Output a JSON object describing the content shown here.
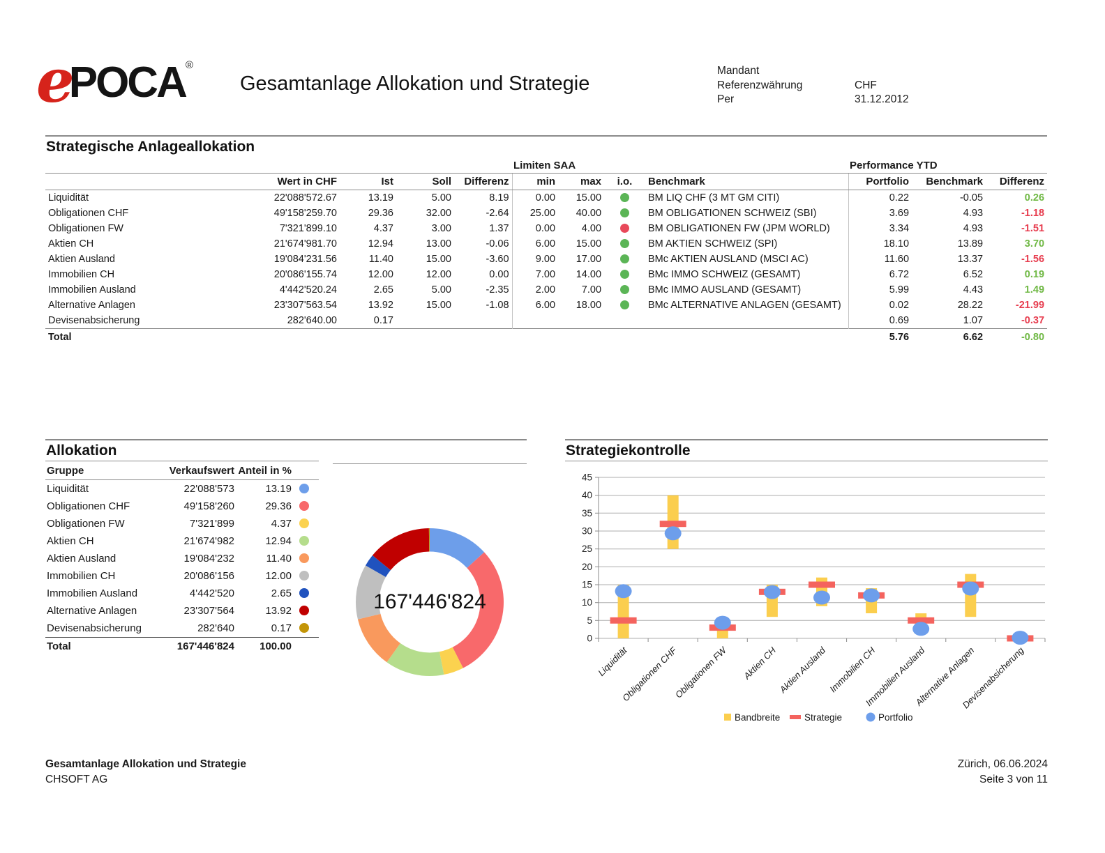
{
  "header": {
    "logo_e": "e",
    "logo_poca": "POCA",
    "logo_reg": "®",
    "title": "Gesamtanlage Allokation und Strategie",
    "meta": [
      {
        "label": "Mandant",
        "value": ""
      },
      {
        "label": "Referenzwährung",
        "value": "CHF"
      },
      {
        "label": "Per",
        "value": "31.12.2012"
      }
    ]
  },
  "colors": {
    "io_green": "#5bb556",
    "io_red": "#e8495a",
    "diff_green": "#6fb844",
    "diff_red": "#e73c4e",
    "logo_red": "#d6231b"
  },
  "saa": {
    "title": "Strategische Anlageallokation",
    "limits_group": "Limiten SAA",
    "perf_group": "Performance YTD",
    "col_wert": "Wert in CHF",
    "col_ist": "Ist",
    "col_soll": "Soll",
    "col_diff": "Differenz",
    "col_min": "min",
    "col_max": "max",
    "col_io": "i.o.",
    "col_benchmark": "Benchmark",
    "col_portfolio": "Portfolio",
    "col_benchmark2": "Benchmark",
    "col_diff2": "Differenz",
    "total_label": "Total",
    "rows": [
      {
        "name": "Liquidität",
        "wert": "22'088'572.67",
        "ist": "13.19",
        "soll": "5.00",
        "diff": "8.19",
        "min": "0.00",
        "max": "15.00",
        "io": "green",
        "benchmark": "BM LIQ CHF (3 MT GM CITI)",
        "ytd_portfolio": "0.22",
        "ytd_benchmark": "-0.05",
        "ytd_diff": "0.26",
        "ytd_diff_color": "green"
      },
      {
        "name": "Obligationen CHF",
        "wert": "49'158'259.70",
        "ist": "29.36",
        "soll": "32.00",
        "diff": "-2.64",
        "min": "25.00",
        "max": "40.00",
        "io": "green",
        "benchmark": "BM OBLIGATIONEN SCHWEIZ (SBI)",
        "ytd_portfolio": "3.69",
        "ytd_benchmark": "4.93",
        "ytd_diff": "-1.18",
        "ytd_diff_color": "red"
      },
      {
        "name": "Obligationen FW",
        "wert": "7'321'899.10",
        "ist": "4.37",
        "soll": "3.00",
        "diff": "1.37",
        "min": "0.00",
        "max": "4.00",
        "io": "red",
        "benchmark": "BM OBLIGATIONEN FW (JPM WORLD)",
        "ytd_portfolio": "3.34",
        "ytd_benchmark": "4.93",
        "ytd_diff": "-1.51",
        "ytd_diff_color": "red"
      },
      {
        "name": "Aktien CH",
        "wert": "21'674'981.70",
        "ist": "12.94",
        "soll": "13.00",
        "diff": "-0.06",
        "min": "6.00",
        "max": "15.00",
        "io": "green",
        "benchmark": "BM AKTIEN SCHWEIZ (SPI)",
        "ytd_portfolio": "18.10",
        "ytd_benchmark": "13.89",
        "ytd_diff": "3.70",
        "ytd_diff_color": "green"
      },
      {
        "name": "Aktien Ausland",
        "wert": "19'084'231.56",
        "ist": "11.40",
        "soll": "15.00",
        "diff": "-3.60",
        "min": "9.00",
        "max": "17.00",
        "io": "green",
        "benchmark": "BMc AKTIEN AUSLAND (MSCI AC)",
        "ytd_portfolio": "11.60",
        "ytd_benchmark": "13.37",
        "ytd_diff": "-1.56",
        "ytd_diff_color": "red"
      },
      {
        "name": "Immobilien CH",
        "wert": "20'086'155.74",
        "ist": "12.00",
        "soll": "12.00",
        "diff": "0.00",
        "min": "7.00",
        "max": "14.00",
        "io": "green",
        "benchmark": "BMc IMMO SCHWEIZ (GESAMT)",
        "ytd_portfolio": "6.72",
        "ytd_benchmark": "6.52",
        "ytd_diff": "0.19",
        "ytd_diff_color": "green"
      },
      {
        "name": "Immobilien Ausland",
        "wert": "4'442'520.24",
        "ist": "2.65",
        "soll": "5.00",
        "diff": "-2.35",
        "min": "2.00",
        "max": "7.00",
        "io": "green",
        "benchmark": "BMc IMMO AUSLAND (GESAMT)",
        "ytd_portfolio": "5.99",
        "ytd_benchmark": "4.43",
        "ytd_diff": "1.49",
        "ytd_diff_color": "green"
      },
      {
        "name": "Alternative Anlagen",
        "wert": "23'307'563.54",
        "ist": "13.92",
        "soll": "15.00",
        "diff": "-1.08",
        "min": "6.00",
        "max": "18.00",
        "io": "green",
        "benchmark": "BMc ALTERNATIVE ANLAGEN (GESAMT)",
        "ytd_portfolio": "0.02",
        "ytd_benchmark": "28.22",
        "ytd_diff": "-21.99",
        "ytd_diff_color": "red"
      },
      {
        "name": "Devisenabsicherung",
        "wert": "282'640.00",
        "ist": "0.17",
        "soll": "",
        "diff": "",
        "min": "",
        "max": "",
        "io": null,
        "benchmark": "",
        "ytd_portfolio": "0.69",
        "ytd_benchmark": "1.07",
        "ytd_diff": "-0.37",
        "ytd_diff_color": "red"
      }
    ],
    "total": {
      "portfolio": "5.76",
      "benchmark": "6.62",
      "diff": "-0.80",
      "diff_color": "green"
    }
  },
  "allocation": {
    "title": "Allokation",
    "col_group": "Gruppe",
    "col_value": "Verkaufswert",
    "col_share": "Anteil in %",
    "rows": [
      {
        "group": "Liquidität",
        "value": "22'088'573",
        "share": "13.19",
        "share_num": 13.19,
        "color": "#6d9eea"
      },
      {
        "group": "Obligationen CHF",
        "value": "49'158'260",
        "share": "29.36",
        "share_num": 29.36,
        "color": "#f8696b"
      },
      {
        "group": "Obligationen FW",
        "value": "7'321'899",
        "share": "4.37",
        "share_num": 4.37,
        "color": "#fbd24f"
      },
      {
        "group": "Aktien CH",
        "value": "21'674'982",
        "share": "12.94",
        "share_num": 12.94,
        "color": "#b5dd8c"
      },
      {
        "group": "Aktien Ausland",
        "value": "19'084'232",
        "share": "11.40",
        "share_num": 11.4,
        "color": "#f9995d"
      },
      {
        "group": "Immobilien CH",
        "value": "20'086'156",
        "share": "12.00",
        "share_num": 12.0,
        "color": "#bfbfbf"
      },
      {
        "group": "Immobilien Ausland",
        "value": "4'442'520",
        "share": "2.65",
        "share_num": 2.65,
        "color": "#2052be"
      },
      {
        "group": "Alternative Anlagen",
        "value": "23'307'564",
        "share": "13.92",
        "share_num": 13.92,
        "color": "#c00000"
      },
      {
        "group": "Devisenabsicherung",
        "value": "282'640",
        "share": "0.17",
        "share_num": 0.17,
        "color": "#c39508"
      }
    ],
    "total": {
      "label": "Total",
      "value": "167'446'824",
      "share": "100.00"
    }
  },
  "donut": {
    "center_label": "167'446'824"
  },
  "control": {
    "title": "Strategiekontrolle",
    "y_min": 0,
    "y_max": 45,
    "y_step": 5,
    "legend": {
      "band": "Bandbreite",
      "strategy": "Strategie",
      "portfolio": "Portfolio"
    },
    "chart_colors": {
      "band": "#fbce4e",
      "strategy": "#f4635e",
      "portfolio": "#6d9eeb"
    },
    "points": [
      {
        "label": "Liquidität",
        "min": 0,
        "max": 15,
        "strategy": 5,
        "portfolio": 13.19
      },
      {
        "label": "Obligationen CHF",
        "min": 25,
        "max": 40,
        "strategy": 32,
        "portfolio": 29.36
      },
      {
        "label": "Obligationen FW",
        "min": 0,
        "max": 4,
        "strategy": 3,
        "portfolio": 4.37
      },
      {
        "label": "Aktien CH",
        "min": 6,
        "max": 15,
        "strategy": 13,
        "portfolio": 12.94
      },
      {
        "label": "Aktien Ausland",
        "min": 9,
        "max": 17,
        "strategy": 15,
        "portfolio": 11.4
      },
      {
        "label": "Immobilien CH",
        "min": 7,
        "max": 14,
        "strategy": 12,
        "portfolio": 12.0
      },
      {
        "label": "Immobilien Ausland",
        "min": 2,
        "max": 7,
        "strategy": 5,
        "portfolio": 2.65
      },
      {
        "label": "Alternative Anlagen",
        "min": 6,
        "max": 18,
        "strategy": 15,
        "portfolio": 13.92
      },
      {
        "label": "Devisenabsicherung",
        "min": null,
        "max": null,
        "strategy": 0,
        "portfolio": 0.17
      }
    ]
  },
  "chart_data": [
    {
      "type": "pie",
      "title": "Allokation",
      "labels": [
        "Liquidität",
        "Obligationen CHF",
        "Obligationen FW",
        "Aktien CH",
        "Aktien Ausland",
        "Immobilien CH",
        "Immobilien Ausland",
        "Alternative Anlagen",
        "Devisenabsicherung"
      ],
      "values": [
        13.19,
        29.36,
        4.37,
        12.94,
        11.4,
        12.0,
        2.65,
        13.92,
        0.17
      ],
      "colors": [
        "#6d9eea",
        "#f8696b",
        "#fbd24f",
        "#b5dd8c",
        "#f9995d",
        "#bfbfbf",
        "#2052be",
        "#c00000",
        "#c39508"
      ],
      "center_label": "167'446'824",
      "donut": true
    },
    {
      "type": "scatter",
      "title": "Strategiekontrolle",
      "categories": [
        "Liquidität",
        "Obligationen CHF",
        "Obligationen FW",
        "Aktien CH",
        "Aktien Ausland",
        "Immobilien CH",
        "Immobilien Ausland",
        "Alternative Anlagen",
        "Devisenabsicherung"
      ],
      "series": [
        {
          "name": "Bandbreite",
          "ranges": [
            [
              0,
              15
            ],
            [
              25,
              40
            ],
            [
              0,
              4
            ],
            [
              6,
              15
            ],
            [
              9,
              17
            ],
            [
              7,
              14
            ],
            [
              2,
              7
            ],
            [
              6,
              18
            ],
            null
          ]
        },
        {
          "name": "Strategie",
          "values": [
            5,
            32,
            3,
            13,
            15,
            12,
            5,
            15,
            0
          ]
        },
        {
          "name": "Portfolio",
          "values": [
            13.19,
            29.36,
            4.37,
            12.94,
            11.4,
            12.0,
            2.65,
            13.92,
            0.17
          ]
        }
      ],
      "ylim": [
        0,
        45
      ],
      "grid": true,
      "legend_position": "bottom"
    }
  ],
  "footer": {
    "left_line1": "Gesamtanlage Allokation und Strategie",
    "left_line2": "CHSOFT AG",
    "right_line1": "Zürich, 06.06.2024",
    "right_line2": "Seite 3 von 11"
  }
}
